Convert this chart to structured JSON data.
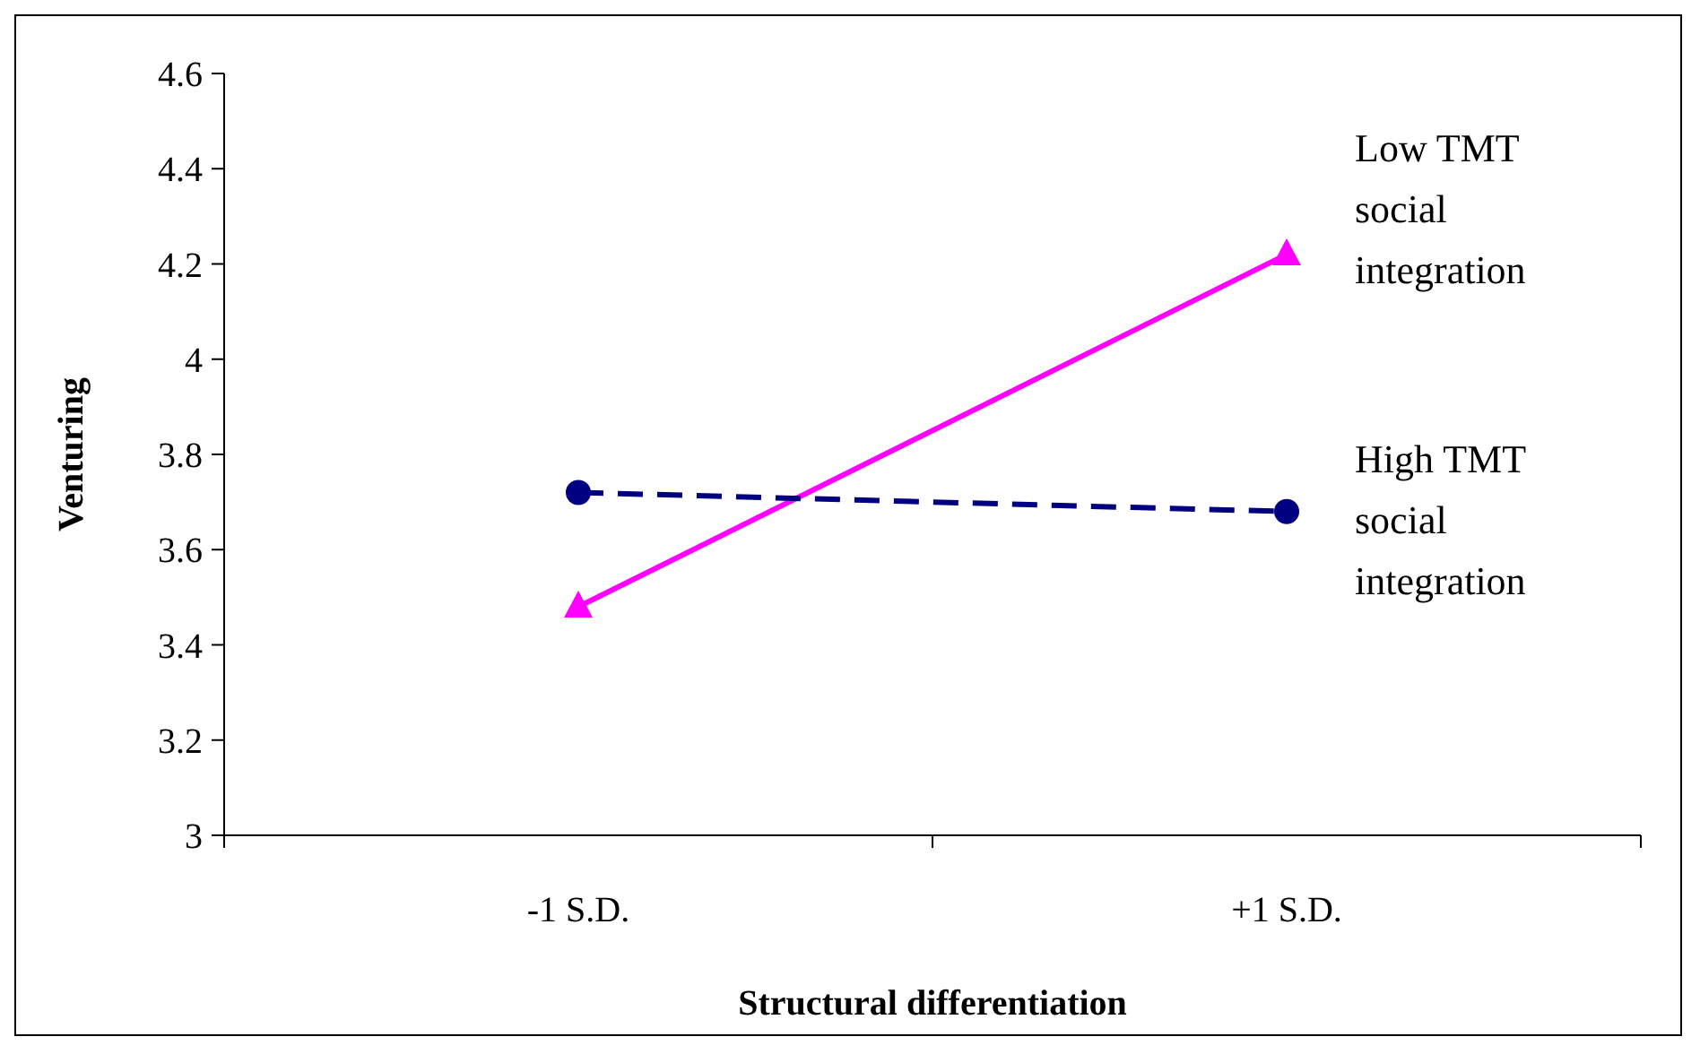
{
  "chart_data": {
    "type": "line",
    "xlabel": "Structural differentiation",
    "ylabel": "Venturing",
    "categories": [
      "-1 S.D.",
      "+1 S.D."
    ],
    "series": [
      {
        "name": "Low TMT social integration",
        "color": "#ff00ff",
        "values": [
          3.48,
          4.22
        ],
        "marker": "triangle",
        "line_style": "solid"
      },
      {
        "name": "High TMT social integration",
        "color": "#000080",
        "values": [
          3.72,
          3.68
        ],
        "marker": "circle",
        "line_style": "dashed"
      }
    ],
    "ylim": [
      3,
      4.6
    ],
    "yticks": [
      3,
      3.2,
      3.4,
      3.6,
      3.8,
      4,
      4.2,
      4.4,
      4.6
    ],
    "grid": false,
    "legend": "right"
  }
}
